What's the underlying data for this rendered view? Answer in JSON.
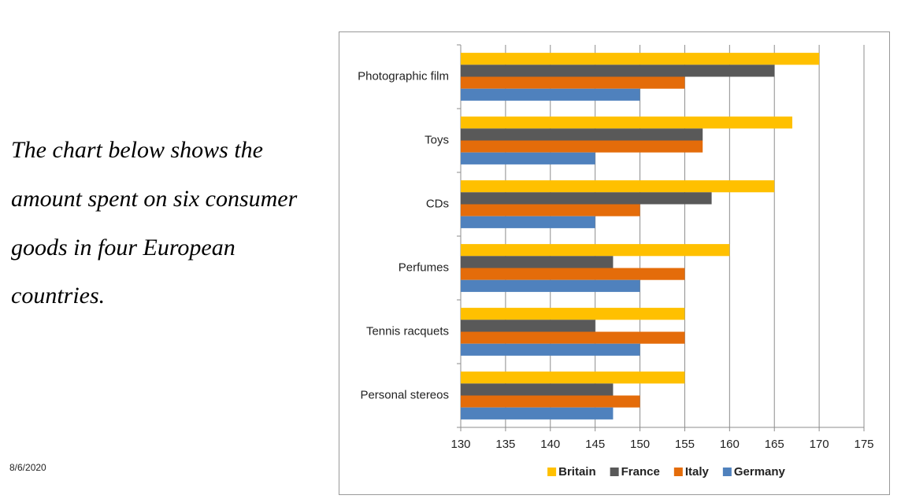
{
  "slide": {
    "text_lines": [
      "The chart below shows the",
      "amount spent on six consumer",
      "goods in four European",
      "countries."
    ],
    "date": "8/6/2020"
  },
  "chart_data": {
    "type": "bar",
    "orientation": "horizontal",
    "categories": [
      "Photographic film",
      "Toys",
      "CDs",
      "Perfumes",
      "Tennis racquets",
      "Personal stereos"
    ],
    "series": [
      {
        "name": "Britain",
        "color": "#ffc000",
        "values": [
          170,
          167,
          165,
          160,
          155,
          155
        ]
      },
      {
        "name": "France",
        "color": "#595959",
        "values": [
          165,
          157,
          158,
          147,
          145,
          147
        ]
      },
      {
        "name": "Italy",
        "color": "#e46c0a",
        "values": [
          155,
          157,
          150,
          155,
          155,
          150
        ]
      },
      {
        "name": "Germany",
        "color": "#4f81bd",
        "values": [
          150,
          145,
          145,
          150,
          150,
          147
        ]
      }
    ],
    "xlim": [
      130,
      175
    ],
    "xticks": [
      130,
      135,
      140,
      145,
      150,
      155,
      160,
      165,
      170,
      175
    ],
    "grid": true,
    "legend": "bottom"
  }
}
